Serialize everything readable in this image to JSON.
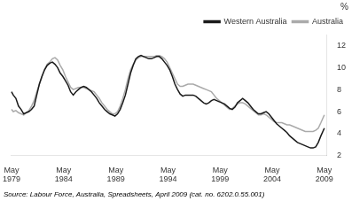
{
  "chart_data": {
    "type": "line",
    "ylabel": "%",
    "annotations": [
      "Source: Labour Force, Australia, Spreadsheets, April 2009 (cat. no. 6202.0.55.001)"
    ],
    "legend": "upper right",
    "grid": false,
    "xlim": [
      1979.25,
      2009.6
    ],
    "xticks": [
      {
        "value": 1979.3333333333333,
        "label": "May\n1979"
      },
      {
        "value": 1984.3333333333333,
        "label": "May\n1984"
      },
      {
        "value": 1989.3333333333333,
        "label": "May\n1989"
      },
      {
        "value": 1994.3333333333333,
        "label": "May\n1994"
      },
      {
        "value": 1999.3333333333333,
        "label": "May\n1999"
      },
      {
        "value": 2004.3333333333333,
        "label": "May\n2004"
      },
      {
        "value": 2009.3333333333333,
        "label": "May\n2009"
      }
    ],
    "ylim": [
      2,
      13
    ],
    "yticks": [
      2,
      4,
      6,
      8,
      10,
      12
    ],
    "x": [
      1979.33,
      1979.5,
      1979.75,
      1980.0,
      1980.25,
      1980.5,
      1980.75,
      1981.0,
      1981.25,
      1981.5,
      1981.75,
      1982.0,
      1982.25,
      1982.5,
      1982.75,
      1983.0,
      1983.25,
      1983.5,
      1983.75,
      1984.0,
      1984.25,
      1984.5,
      1984.75,
      1985.0,
      1985.25,
      1985.5,
      1985.75,
      1986.0,
      1986.25,
      1986.5,
      1986.75,
      1987.0,
      1987.25,
      1987.5,
      1987.75,
      1988.0,
      1988.25,
      1988.5,
      1988.75,
      1989.0,
      1989.25,
      1989.5,
      1989.75,
      1990.0,
      1990.25,
      1990.5,
      1990.75,
      1991.0,
      1991.25,
      1991.5,
      1991.75,
      1992.0,
      1992.25,
      1992.5,
      1992.75,
      1993.0,
      1993.25,
      1993.5,
      1993.75,
      1994.0,
      1994.25,
      1994.5,
      1994.75,
      1995.0,
      1995.25,
      1995.5,
      1995.75,
      1996.0,
      1996.25,
      1996.5,
      1996.75,
      1997.0,
      1997.25,
      1997.5,
      1997.75,
      1998.0,
      1998.25,
      1998.5,
      1998.75,
      1999.0,
      1999.25,
      1999.5,
      1999.75,
      2000.0,
      2000.25,
      2000.5,
      2000.75,
      2001.0,
      2001.25,
      2001.5,
      2001.75,
      2002.0,
      2002.25,
      2002.5,
      2002.75,
      2003.0,
      2003.25,
      2003.5,
      2003.75,
      2004.0,
      2004.25,
      2004.5,
      2004.75,
      2005.0,
      2005.25,
      2005.5,
      2005.75,
      2006.0,
      2006.25,
      2006.5,
      2006.75,
      2007.0,
      2007.25,
      2007.5,
      2007.75,
      2008.0,
      2008.25,
      2008.5,
      2008.75,
      2009.0,
      2009.33
    ],
    "series": [
      {
        "name": "Western Australia",
        "color": "#1a1a1a",
        "values": [
          7.8,
          7.5,
          7.2,
          6.5,
          6.2,
          5.8,
          5.9,
          6.0,
          6.2,
          6.5,
          7.5,
          8.5,
          9.2,
          9.8,
          10.2,
          10.4,
          10.5,
          10.3,
          10.0,
          9.5,
          9.2,
          8.8,
          8.4,
          7.8,
          7.5,
          7.8,
          8.0,
          8.2,
          8.3,
          8.2,
          8.0,
          7.8,
          7.5,
          7.2,
          6.8,
          6.5,
          6.2,
          6.0,
          5.8,
          5.7,
          5.6,
          5.8,
          6.2,
          6.8,
          7.5,
          8.5,
          9.5,
          10.2,
          10.8,
          11.0,
          11.1,
          11.0,
          10.9,
          10.8,
          10.8,
          10.9,
          11.0,
          11.0,
          10.8,
          10.5,
          10.2,
          9.8,
          9.2,
          8.5,
          8.0,
          7.6,
          7.4,
          7.5,
          7.5,
          7.5,
          7.5,
          7.4,
          7.2,
          7.0,
          6.8,
          6.7,
          6.8,
          7.0,
          7.1,
          7.0,
          6.9,
          6.8,
          6.7,
          6.5,
          6.3,
          6.2,
          6.4,
          6.8,
          7.0,
          7.2,
          7.0,
          6.8,
          6.5,
          6.2,
          6.0,
          5.8,
          5.8,
          5.9,
          6.0,
          5.8,
          5.5,
          5.2,
          4.9,
          4.7,
          4.5,
          4.3,
          4.1,
          3.8,
          3.6,
          3.4,
          3.2,
          3.1,
          3.0,
          2.9,
          2.8,
          2.7,
          2.7,
          2.8,
          3.2,
          3.8,
          4.5
        ]
      },
      {
        "name": "Australia",
        "color": "#aaaaaa",
        "values": [
          6.2,
          6.0,
          6.1,
          5.9,
          5.8,
          5.7,
          5.9,
          6.1,
          6.5,
          7.0,
          7.8,
          8.5,
          9.2,
          9.8,
          10.3,
          10.5,
          10.8,
          10.9,
          10.7,
          10.2,
          9.8,
          9.2,
          8.7,
          8.2,
          8.0,
          8.1,
          8.2,
          8.2,
          8.2,
          8.1,
          8.0,
          7.9,
          7.8,
          7.5,
          7.2,
          6.8,
          6.5,
          6.2,
          6.0,
          5.8,
          5.8,
          6.0,
          6.5,
          7.2,
          8.0,
          9.0,
          9.8,
          10.3,
          10.7,
          10.9,
          11.0,
          11.0,
          11.0,
          11.0,
          11.0,
          11.0,
          11.1,
          11.1,
          11.0,
          10.8,
          10.5,
          10.0,
          9.5,
          9.0,
          8.5,
          8.3,
          8.3,
          8.4,
          8.5,
          8.5,
          8.5,
          8.4,
          8.3,
          8.2,
          8.1,
          8.0,
          7.9,
          7.8,
          7.5,
          7.2,
          7.0,
          6.8,
          6.6,
          6.4,
          6.2,
          6.3,
          6.5,
          6.7,
          6.8,
          6.8,
          6.7,
          6.5,
          6.3,
          6.1,
          5.9,
          5.7,
          5.7,
          5.8,
          5.7,
          5.5,
          5.3,
          5.1,
          5.0,
          5.0,
          5.0,
          4.9,
          4.8,
          4.8,
          4.7,
          4.6,
          4.5,
          4.4,
          4.3,
          4.2,
          4.2,
          4.2,
          4.2,
          4.3,
          4.5,
          5.0,
          5.7
        ]
      }
    ]
  }
}
